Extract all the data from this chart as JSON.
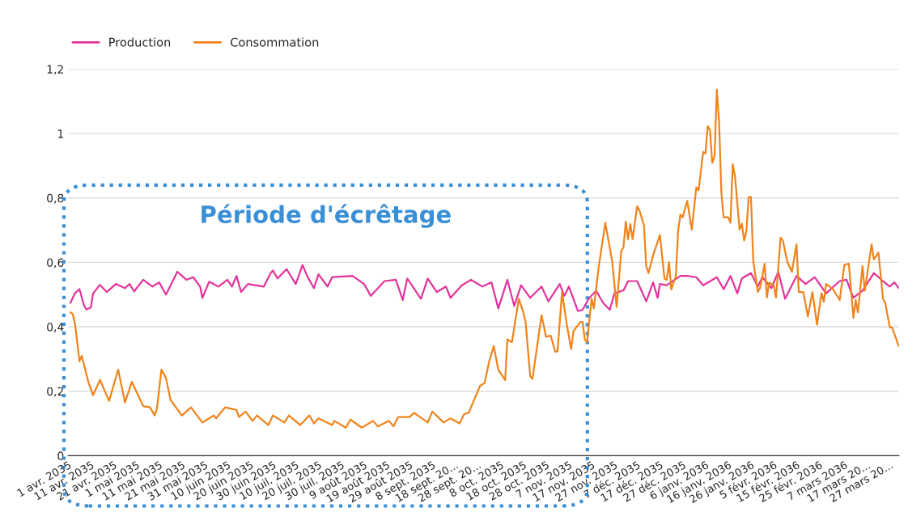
{
  "chart_data": {
    "type": "line",
    "xlim": [
      "2035-04-01",
      "2036-03-31"
    ],
    "xticks": [
      {
        "value": "2035-04-01",
        "label": "1 avr. 2035"
      },
      {
        "value": "2035-04-11",
        "label": "11 avr. 2035"
      },
      {
        "value": "2035-04-21",
        "label": "21 avr. 2035"
      },
      {
        "value": "2035-05-01",
        "label": "1 mai 2035"
      },
      {
        "value": "2035-05-11",
        "label": "11 mai 2035"
      },
      {
        "value": "2035-05-21",
        "label": "21 mai 2035"
      },
      {
        "value": "2035-05-31",
        "label": "31 mai 2035"
      },
      {
        "value": "2035-06-10",
        "label": "10 juin 2035"
      },
      {
        "value": "2035-06-20",
        "label": "20 juin 2035"
      },
      {
        "value": "2035-06-30",
        "label": "30 juin 2035"
      },
      {
        "value": "2035-07-10",
        "label": "10 juil. 2035"
      },
      {
        "value": "2035-07-20",
        "label": "20 juil. 2035"
      },
      {
        "value": "2035-07-30",
        "label": "30 juil. 2035"
      },
      {
        "value": "2035-08-09",
        "label": "9 août 2035"
      },
      {
        "value": "2035-08-19",
        "label": "19 août 2035"
      },
      {
        "value": "2035-08-29",
        "label": "29 août 2035"
      },
      {
        "value": "2035-09-08",
        "label": "8 sept. 2035"
      },
      {
        "value": "2035-09-18",
        "label": "18 sept. 20..."
      },
      {
        "value": "2035-09-28",
        "label": "28 sept. 20..."
      },
      {
        "value": "2035-10-08",
        "label": "8 oct. 2035"
      },
      {
        "value": "2035-10-18",
        "label": "18 oct. 2035"
      },
      {
        "value": "2035-10-28",
        "label": "28 oct. 2035"
      },
      {
        "value": "2035-11-07",
        "label": "7 nov. 2035"
      },
      {
        "value": "2035-11-17",
        "label": "17 nov. 2035"
      },
      {
        "value": "2035-11-27",
        "label": "27 nov. 2035"
      },
      {
        "value": "2035-12-07",
        "label": "7 déc. 2035"
      },
      {
        "value": "2035-12-17",
        "label": "17 déc. 2035"
      },
      {
        "value": "2035-12-27",
        "label": "27 déc. 2035"
      },
      {
        "value": "2036-01-06",
        "label": "6 janv. 2036"
      },
      {
        "value": "2036-01-16",
        "label": "16 janv. 2036"
      },
      {
        "value": "2036-01-26",
        "label": "26 janv. 2036"
      },
      {
        "value": "2036-02-05",
        "label": "5 févr. 2036"
      },
      {
        "value": "2036-02-15",
        "label": "15 févr. 2036"
      },
      {
        "value": "2036-02-25",
        "label": "25 févr. 2036"
      },
      {
        "value": "2036-03-07",
        "label": "7 mars 2036"
      },
      {
        "value": "2036-03-17",
        "label": "17 mars 20..."
      },
      {
        "value": "2036-03-27",
        "label": "27 mars 20..."
      }
    ],
    "ylim": [
      0,
      1.2
    ],
    "yticks": [
      0,
      {
        "value": 0.2,
        "label": "0,2"
      },
      {
        "value": 0.4,
        "label": "0,4"
      },
      {
        "value": 0.6,
        "label": "0,6"
      },
      {
        "value": 0.8,
        "label": "0,8"
      },
      1,
      {
        "value": 1.2,
        "label": "1,2"
      }
    ],
    "grid": "y",
    "legend": "top left",
    "line_style": "solid",
    "annotations": [
      "Période d'écrêtage"
    ],
    "series": [
      {
        "name": "Production",
        "color": "#e3349c",
        "x": [
          "2035-04-02",
          "2035-04-04",
          "2035-04-06",
          "2035-04-08",
          "2035-04-09",
          "2035-04-11",
          "2035-04-12",
          "2035-04-15",
          "2035-04-18",
          "2035-04-22",
          "2035-04-26",
          "2035-04-28",
          "2035-04-30",
          "2035-05-04",
          "2035-05-08",
          "2035-05-11",
          "2035-05-14",
          "2035-05-19",
          "2035-05-23",
          "2035-05-26",
          "2035-05-29",
          "2035-05-30",
          "2035-06-02",
          "2035-06-06",
          "2035-06-10",
          "2035-06-12",
          "2035-06-14",
          "2035-06-16",
          "2035-06-19",
          "2035-06-26",
          "2035-06-29",
          "2035-06-30",
          "2035-07-02",
          "2035-07-06",
          "2035-07-10",
          "2035-07-13",
          "2035-07-15",
          "2035-07-18",
          "2035-07-20",
          "2035-07-24",
          "2035-07-26",
          "2035-08-04",
          "2035-08-09",
          "2035-08-12",
          "2035-08-18",
          "2035-08-23",
          "2035-08-26",
          "2035-08-28",
          "2035-09-03",
          "2035-09-06",
          "2035-09-10",
          "2035-09-14",
          "2035-09-16",
          "2035-09-21",
          "2035-09-25",
          "2035-09-30",
          "2035-10-04",
          "2035-10-07",
          "2035-10-11",
          "2035-10-14",
          "2035-10-17",
          "2035-10-21",
          "2035-10-26",
          "2035-10-29",
          "2035-11-03",
          "2035-11-05",
          "2035-11-07",
          "2035-11-11",
          "2035-11-13",
          "2035-11-16",
          "2035-11-19",
          "2035-11-22",
          "2035-11-25",
          "2035-11-27",
          "2035-12-01",
          "2035-12-03",
          "2035-12-07",
          "2035-12-11",
          "2035-12-14",
          "2035-12-16",
          "2035-12-17",
          "2035-12-20",
          "2035-12-26",
          "2035-12-29",
          "2036-01-02",
          "2036-01-05",
          "2036-01-11",
          "2036-01-14",
          "2036-01-17",
          "2036-01-20",
          "2036-01-22",
          "2036-01-26",
          "2036-01-29",
          "2036-01-31",
          "2036-02-04",
          "2036-02-07",
          "2036-02-10",
          "2036-02-15",
          "2036-02-19",
          "2036-02-23",
          "2036-02-28",
          "2036-03-05",
          "2036-03-08",
          "2036-03-11",
          "2036-03-15",
          "2036-03-20",
          "2036-03-24",
          "2036-03-27",
          "2036-03-29",
          "2036-03-31"
        ],
        "values": [
          0.474,
          0.504,
          0.517,
          0.466,
          0.454,
          0.46,
          0.504,
          0.53,
          0.508,
          0.533,
          0.52,
          0.533,
          0.51,
          0.546,
          0.525,
          0.538,
          0.5,
          0.571,
          0.546,
          0.554,
          0.525,
          0.49,
          0.54,
          0.525,
          0.546,
          0.525,
          0.558,
          0.508,
          0.533,
          0.525,
          0.567,
          0.575,
          0.55,
          0.579,
          0.533,
          0.592,
          0.558,
          0.52,
          0.563,
          0.525,
          0.554,
          0.558,
          0.533,
          0.496,
          0.542,
          0.546,
          0.483,
          0.55,
          0.487,
          0.55,
          0.508,
          0.525,
          0.49,
          0.529,
          0.546,
          0.525,
          0.538,
          0.457,
          0.546,
          0.465,
          0.529,
          0.49,
          0.525,
          0.479,
          0.533,
          0.496,
          0.525,
          0.449,
          0.453,
          0.49,
          0.512,
          0.475,
          0.453,
          0.504,
          0.513,
          0.542,
          0.542,
          0.479,
          0.538,
          0.49,
          0.533,
          0.529,
          0.558,
          0.558,
          0.554,
          0.529,
          0.554,
          0.517,
          0.558,
          0.504,
          0.55,
          0.567,
          0.525,
          0.554,
          0.52,
          0.571,
          0.487,
          0.558,
          0.533,
          0.554,
          0.504,
          0.542,
          0.546,
          0.49,
          0.512,
          0.567,
          0.542,
          0.525,
          0.538,
          0.52
        ]
      },
      {
        "name": "Consommation",
        "color": "#f0841c",
        "x": [
          "2035-04-02",
          "2035-04-03",
          "2035-04-04",
          "2035-04-06",
          "2035-04-07",
          "2035-04-10",
          "2035-04-12",
          "2035-04-15",
          "2035-04-19",
          "2035-04-23",
          "2035-04-26",
          "2035-04-29",
          "2035-05-04",
          "2035-05-07",
          "2035-05-09",
          "2035-05-10",
          "2035-05-12",
          "2035-05-14",
          "2035-05-16",
          "2035-05-21",
          "2035-05-25",
          "2035-05-30",
          "2035-06-04",
          "2035-06-05",
          "2035-06-09",
          "2035-06-14",
          "2035-06-15",
          "2035-06-18",
          "2035-06-21",
          "2035-06-23",
          "2035-06-28",
          "2035-06-30",
          "2035-07-05",
          "2035-07-07",
          "2035-07-12",
          "2035-07-16",
          "2035-07-18",
          "2035-07-20",
          "2035-07-26",
          "2035-07-27",
          "2035-08-01",
          "2035-08-03",
          "2035-08-08",
          "2035-08-13",
          "2035-08-15",
          "2035-08-20",
          "2035-08-22",
          "2035-08-24",
          "2035-08-29",
          "2035-08-31",
          "2035-09-06",
          "2035-09-08",
          "2035-09-13",
          "2035-09-16",
          "2035-09-20",
          "2035-09-22",
          "2035-09-24",
          "2035-09-26",
          "2035-09-29",
          "2035-10-01",
          "2035-10-03",
          "2035-10-05",
          "2035-10-07",
          "2035-10-10",
          "2035-10-11",
          "2035-10-13",
          "2035-10-16",
          "2035-10-18",
          "2035-10-19",
          "2035-10-21",
          "2035-10-22",
          "2035-10-26",
          "2035-10-28",
          "2035-10-30",
          "2035-11-01",
          "2035-11-02",
          "2035-11-04",
          "2035-11-06",
          "2035-11-08",
          "2035-11-09",
          "2035-11-12",
          "2035-11-13",
          "2035-11-14",
          "2035-11-15",
          "2035-11-17",
          "2035-11-18",
          "2035-11-20",
          "2035-11-23",
          "2035-11-26",
          "2035-11-28",
          "2035-11-30",
          "2035-12-01",
          "2035-12-02",
          "2035-12-03",
          "2035-12-04",
          "2035-12-05",
          "2035-12-07",
          "2035-12-08",
          "2035-12-10",
          "2035-12-11",
          "2035-12-12",
          "2035-12-14",
          "2035-12-17",
          "2035-12-19",
          "2035-12-20",
          "2035-12-21",
          "2035-12-22",
          "2035-12-24",
          "2035-12-25",
          "2035-12-26",
          "2035-12-27",
          "2035-12-29",
          "2035-12-31",
          "2036-01-02",
          "2036-01-03",
          "2036-01-05",
          "2036-01-06",
          "2036-01-07",
          "2036-01-08",
          "2036-01-09",
          "2036-01-10",
          "2036-01-11",
          "2036-01-12",
          "2036-01-13",
          "2036-01-14",
          "2036-01-16",
          "2036-01-17",
          "2036-01-18",
          "2036-01-19",
          "2036-01-21",
          "2036-01-22",
          "2036-01-23",
          "2036-01-24",
          "2036-01-25",
          "2036-01-26",
          "2036-01-27",
          "2036-01-29",
          "2036-01-30",
          "2036-02-01",
          "2036-02-02",
          "2036-02-03",
          "2036-02-05",
          "2036-02-06",
          "2036-02-08",
          "2036-02-09",
          "2036-02-11",
          "2036-02-13",
          "2036-02-15",
          "2036-02-16",
          "2036-02-18",
          "2036-02-20",
          "2036-02-22",
          "2036-02-24",
          "2036-02-26",
          "2036-02-27",
          "2036-02-28",
          "2036-03-02",
          "2036-03-05",
          "2036-03-07",
          "2036-03-09",
          "2036-03-11",
          "2036-03-12",
          "2036-03-13",
          "2036-03-15",
          "2036-03-16",
          "2036-03-19",
          "2036-03-20",
          "2036-03-22",
          "2036-03-24",
          "2036-03-25",
          "2036-03-27",
          "2036-03-28",
          "2036-03-31"
        ],
        "values": [
          0.445,
          0.44,
          0.411,
          0.293,
          0.31,
          0.226,
          0.188,
          0.235,
          0.17,
          0.267,
          0.165,
          0.229,
          0.154,
          0.15,
          0.125,
          0.145,
          0.267,
          0.241,
          0.173,
          0.125,
          0.15,
          0.103,
          0.125,
          0.116,
          0.15,
          0.142,
          0.12,
          0.137,
          0.108,
          0.125,
          0.095,
          0.125,
          0.103,
          0.125,
          0.095,
          0.125,
          0.1,
          0.116,
          0.095,
          0.108,
          0.087,
          0.112,
          0.087,
          0.108,
          0.091,
          0.108,
          0.091,
          0.12,
          0.12,
          0.133,
          0.103,
          0.137,
          0.103,
          0.116,
          0.1,
          0.129,
          0.133,
          0.167,
          0.217,
          0.226,
          0.293,
          0.34,
          0.267,
          0.235,
          0.361,
          0.352,
          0.487,
          0.445,
          0.415,
          0.247,
          0.238,
          0.436,
          0.369,
          0.373,
          0.323,
          0.323,
          0.508,
          0.411,
          0.331,
          0.386,
          0.415,
          0.415,
          0.361,
          0.352,
          0.487,
          0.457,
          0.58,
          0.723,
          0.605,
          0.462,
          0.634,
          0.647,
          0.727,
          0.672,
          0.719,
          0.672,
          0.774,
          0.761,
          0.715,
          0.588,
          0.567,
          0.622,
          0.685,
          0.55,
          0.546,
          0.601,
          0.516,
          0.558,
          0.698,
          0.748,
          0.74,
          0.791,
          0.702,
          0.833,
          0.824,
          0.943,
          0.938,
          1.023,
          1.01,
          0.909,
          0.93,
          1.137,
          1.035,
          0.816,
          0.74,
          0.74,
          0.723,
          0.905,
          0.867,
          0.702,
          0.72,
          0.668,
          0.698,
          0.803,
          0.803,
          0.605,
          0.508,
          0.52,
          0.596,
          0.491,
          0.537,
          0.529,
          0.491,
          0.677,
          0.668,
          0.601,
          0.571,
          0.656,
          0.508,
          0.508,
          0.432,
          0.508,
          0.407,
          0.504,
          0.478,
          0.533,
          0.517,
          0.483,
          0.592,
          0.596,
          0.428,
          0.483,
          0.445,
          0.588,
          0.512,
          0.656,
          0.609,
          0.63,
          0.487,
          0.474,
          0.398,
          0.398,
          0.339
        ]
      }
    ]
  }
}
